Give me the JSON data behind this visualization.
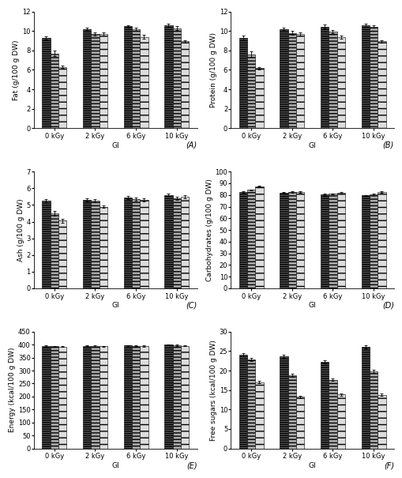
{
  "subplots": [
    {
      "label": "(A)",
      "ylabel": "Fat (g/100 g DW)",
      "ylim": [
        0,
        12
      ],
      "yticks": [
        0,
        2,
        4,
        6,
        8,
        10,
        12
      ],
      "groups": [
        "0 kGy",
        "2 kGy",
        "6 kGy",
        "10 kGy"
      ],
      "values": [
        [
          9.3,
          7.7,
          6.3
        ],
        [
          10.2,
          9.7,
          9.7
        ],
        [
          10.5,
          10.2,
          9.4
        ],
        [
          10.6,
          10.3,
          8.95
        ]
      ],
      "errors": [
        [
          0.18,
          0.28,
          0.12
        ],
        [
          0.12,
          0.18,
          0.18
        ],
        [
          0.12,
          0.18,
          0.18
        ],
        [
          0.18,
          0.18,
          0.12
        ]
      ]
    },
    {
      "label": "(B)",
      "ylabel": "Protein (g/100 g DW)",
      "ylim": [
        0,
        12
      ],
      "yticks": [
        0,
        2,
        4,
        6,
        8,
        10,
        12
      ],
      "groups": [
        "0 kGy",
        "2 kGy",
        "6 kGy",
        "10 kGy"
      ],
      "values": [
        [
          9.3,
          7.6,
          6.2
        ],
        [
          10.2,
          9.8,
          9.7
        ],
        [
          10.45,
          9.95,
          9.35
        ],
        [
          10.6,
          10.45,
          8.95
        ]
      ],
      "errors": [
        [
          0.22,
          0.28,
          0.12
        ],
        [
          0.12,
          0.18,
          0.18
        ],
        [
          0.18,
          0.18,
          0.18
        ],
        [
          0.18,
          0.12,
          0.12
        ]
      ]
    },
    {
      "label": "(C)",
      "ylabel": "Ash (g/100 g DW)",
      "ylim": [
        0,
        7
      ],
      "yticks": [
        0,
        1,
        2,
        3,
        4,
        5,
        6,
        7
      ],
      "groups": [
        "0 kGy",
        "2 kGy",
        "6 kGy",
        "10 kGy"
      ],
      "values": [
        [
          5.25,
          4.5,
          4.05
        ],
        [
          5.3,
          5.25,
          4.9
        ],
        [
          5.45,
          5.35,
          5.3
        ],
        [
          5.6,
          5.4,
          5.5
        ]
      ],
      "errors": [
        [
          0.08,
          0.12,
          0.1
        ],
        [
          0.08,
          0.08,
          0.08
        ],
        [
          0.08,
          0.08,
          0.08
        ],
        [
          0.08,
          0.08,
          0.08
        ]
      ]
    },
    {
      "label": "(D)",
      "ylabel": "Carbohydrates (g/100 g DW)",
      "ylim": [
        0,
        100
      ],
      "yticks": [
        0,
        10,
        20,
        30,
        40,
        50,
        60,
        70,
        80,
        90,
        100
      ],
      "groups": [
        "0 kGy",
        "2 kGy",
        "6 kGy",
        "10 kGy"
      ],
      "values": [
        [
          82.5,
          84.5,
          87.5
        ],
        [
          82.0,
          82.5,
          82.5
        ],
        [
          80.5,
          81.0,
          82.0
        ],
        [
          79.5,
          80.5,
          82.5
        ]
      ],
      "errors": [
        [
          0.4,
          0.4,
          0.4
        ],
        [
          0.4,
          0.4,
          0.4
        ],
        [
          0.4,
          0.4,
          0.5
        ],
        [
          0.4,
          0.4,
          0.4
        ]
      ]
    },
    {
      "label": "(E)",
      "ylabel": "Energy (kcal/100 g DW)",
      "ylim": [
        0,
        450
      ],
      "yticks": [
        0,
        50,
        100,
        150,
        200,
        250,
        300,
        350,
        400,
        450
      ],
      "groups": [
        "0 kGy",
        "2 kGy",
        "6 kGy",
        "10 kGy"
      ],
      "values": [
        [
          395,
          394,
          393
        ],
        [
          396,
          395,
          394
        ],
        [
          397,
          396,
          395
        ],
        [
          400,
          398,
          396
        ]
      ],
      "errors": [
        [
          2,
          2,
          2
        ],
        [
          2,
          2,
          2
        ],
        [
          2,
          2,
          2
        ],
        [
          2,
          2,
          2
        ]
      ]
    },
    {
      "label": "(F)",
      "ylabel": "Free sugars (kcal/100 g DW)",
      "ylim": [
        0,
        30
      ],
      "yticks": [
        0,
        5,
        10,
        15,
        20,
        25,
        30
      ],
      "groups": [
        "0 kGy",
        "2 kGy",
        "6 kGy",
        "10 kGy"
      ],
      "values": [
        [
          24.0,
          22.8,
          17.0
        ],
        [
          23.7,
          18.7,
          13.3
        ],
        [
          22.2,
          17.6,
          13.9
        ],
        [
          26.1,
          19.8,
          13.8
        ]
      ],
      "errors": [
        [
          0.4,
          0.4,
          0.3
        ],
        [
          0.4,
          0.4,
          0.3
        ],
        [
          0.4,
          0.3,
          0.3
        ],
        [
          0.4,
          0.4,
          0.3
        ]
      ]
    }
  ],
  "bar_colors": [
    "#555555",
    "#aaaaaa",
    "#dddddd"
  ],
  "bar_width": 0.2,
  "xlabel": "GI",
  "background_color": "#ffffff",
  "fontsize_axis_label": 6.5,
  "fontsize_tick": 6,
  "fontsize_group_label": 6,
  "fontsize_subplot_label": 7
}
